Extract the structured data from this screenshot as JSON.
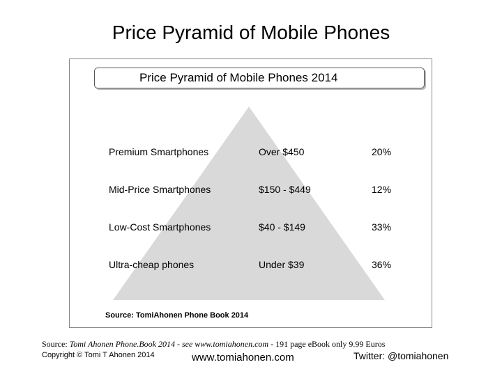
{
  "slide": {
    "title": "Price Pyramid of Mobile Phones"
  },
  "diagram": {
    "title": "Price Pyramid of Mobile Phones 2014",
    "tiers": [
      {
        "name": "Premium Smartphones",
        "price": "Over $450",
        "share": "20%"
      },
      {
        "name": "Mid-Price Smartphones",
        "price": "$150 - $449",
        "share": "12%"
      },
      {
        "name": "Low-Cost Smartphones",
        "price": "$40 - $149",
        "share": "33%"
      },
      {
        "name": "Ultra-cheap phones",
        "price": "Under $39",
        "share": "36%"
      }
    ],
    "source": "Source: TomiAhonen Phone Book 2014",
    "pyramid_color": "#d9d9d9"
  },
  "footer": {
    "source_label": "Source:",
    "source_italic": "Tomi Ahonen Phone.Book 2014 - see www.tomiahonen.com",
    "source_rest": " - 191 page eBook only 9.99 Euros",
    "copyright": "Copyright © Tomi T Ahonen 2014",
    "website": "www.tomiahonen.com",
    "twitter": "Twitter: @tomiahonen"
  }
}
